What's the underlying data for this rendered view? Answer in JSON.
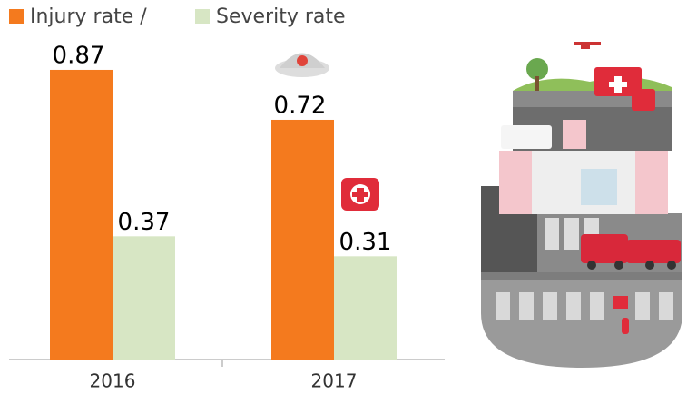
{
  "chart_data": {
    "type": "bar",
    "categories": [
      "2016",
      "2017"
    ],
    "series": [
      {
        "name": "Injury rate /",
        "color": "#f47a1e",
        "values": [
          0.87,
          0.72
        ]
      },
      {
        "name": "Severity rate",
        "color": "#d7e6c4",
        "values": [
          0.37,
          0.31
        ]
      }
    ]
  }
}
